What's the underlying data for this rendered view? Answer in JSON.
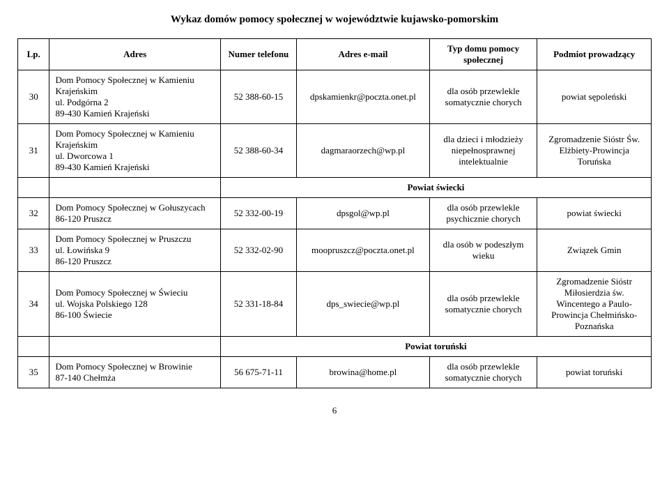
{
  "title": "Wykaz domów pomocy społecznej w województwie kujawsko-pomorskim",
  "headers": {
    "lp": "Lp.",
    "adres": "Adres",
    "telefon": "Numer telefonu",
    "email": "Adres e-mail",
    "typ": "Typ domu pomocy społecznej",
    "podmiot": "Podmiot prowadzący"
  },
  "rows": [
    {
      "lp": "30",
      "adres": "Dom Pomocy Społecznej w Kamieniu Krajeńskim\nul. Podgórna 2\n89-430 Kamień Krajeński",
      "tel": "52 388-60-15",
      "email": "dpskamienkr@poczta.onet.pl",
      "typ": "dla osób przewlekle somatycznie chorych",
      "pod": "powiat sępoleński"
    },
    {
      "lp": "31",
      "adres": "Dom Pomocy Społecznej w Kamieniu Krajeńskim\nul. Dworcowa 1\n89-430 Kamień Krajeński",
      "tel": "52 388-60-34",
      "email": "dagmaraorzech@wp.pl",
      "typ": "dla dzieci i młodzieży niepełnosprawnej intelektualnie",
      "pod": "Zgromadzenie Sióstr Św. Elżbiety-Prowincja Toruńska"
    },
    {
      "section": "Powiat świecki"
    },
    {
      "lp": "32",
      "adres": "Dom Pomocy Społecznej  w Gołuszycach\n86-120 Pruszcz",
      "tel": "52 332-00-19",
      "email": "dpsgol@wp.pl",
      "typ": "dla osób przewlekle psychicznie chorych",
      "pod": "powiat świecki"
    },
    {
      "lp": "33",
      "adres": "Dom Pomocy Społecznej  w Pruszczu\nul. Łowińska 9\n86-120 Pruszcz",
      "tel": "52 332-02-90",
      "email": "moopruszcz@poczta.onet.pl",
      "typ": "dla osób w podeszłym wieku",
      "pod": "Związek Gmin"
    },
    {
      "lp": "34",
      "adres": "Dom Pomocy Społecznej w Świeciu\nul. Wojska Polskiego 128\n86-100 Świecie",
      "tel": "52 331-18-84",
      "email": "dps_swiecie@wp.pl",
      "typ": "dla osób przewlekle somatycznie chorych",
      "pod": "Zgromadzenie Sióstr Miłosierdzia św. Wincentego a Paulo-Prowincja Chełmińsko-Poznańska"
    },
    {
      "section": "Powiat toruński"
    },
    {
      "lp": "35",
      "adres": "Dom Pomocy Społecznej w Browinie\n87-140 Chełmża",
      "tel": "56 675-71-11",
      "email": "browina@home.pl",
      "typ": "dla osób przewlekle somatycznie chorych",
      "pod": "powiat toruński"
    }
  ],
  "pageNumber": "6"
}
